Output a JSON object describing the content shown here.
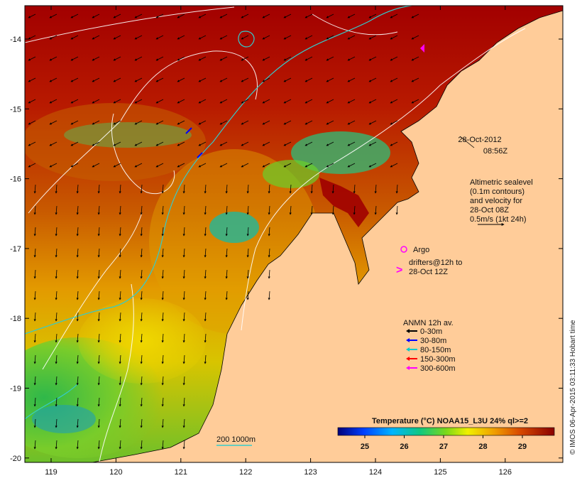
{
  "map": {
    "lon_ticks": [
      "119",
      "120",
      "121",
      "122",
      "123",
      "124",
      "125",
      "126"
    ],
    "lat_ticks": [
      "-14",
      "-15",
      "-16",
      "-17",
      "-18",
      "-19",
      "-20"
    ]
  },
  "timestamp": {
    "date": "28-Oct-2012",
    "time": "08:56Z"
  },
  "altimetry": {
    "lines": [
      "Altimetric sealevel",
      "(0.1m contours)",
      "and velocity for",
      "28-Oct 08Z",
      "0.5m/s (1kt 24h)"
    ]
  },
  "argo": {
    "label": "Argo"
  },
  "drifters": {
    "lines": [
      "drifters@12h to",
      "28-Oct 12Z"
    ]
  },
  "anmn": {
    "title": "ANMN 12h av.",
    "entries": [
      {
        "label": "0-30m",
        "color": "#000000"
      },
      {
        "label": "30-80m",
        "color": "#0000ff"
      },
      {
        "label": "80-150m",
        "color": "#00cccc"
      },
      {
        "label": "150-300m",
        "color": "#ff0000"
      },
      {
        "label": "300-600m",
        "color": "#ff00ff"
      }
    ]
  },
  "colorbar": {
    "title": "Temperature (°C) NOAA15_L3U 24% ql>=2",
    "ticks": [
      "25",
      "26",
      "27",
      "28",
      "29"
    ]
  },
  "isobath": {
    "label": "200  1000m"
  },
  "credit": "© IMOS 06-Apr-2015 03:11:33 Hobart time"
}
